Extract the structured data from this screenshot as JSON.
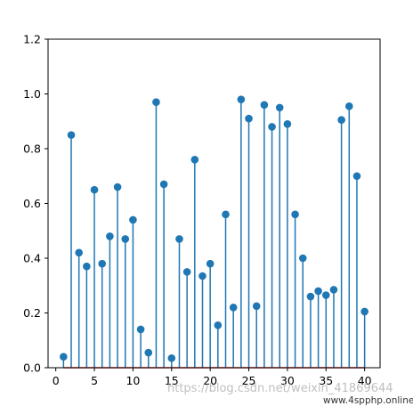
{
  "chart_data": {
    "type": "stem",
    "x": [
      1,
      2,
      3,
      4,
      5,
      6,
      7,
      8,
      9,
      10,
      11,
      12,
      13,
      14,
      15,
      16,
      17,
      18,
      19,
      20,
      21,
      22,
      23,
      24,
      25,
      26,
      27,
      28,
      29,
      30,
      31,
      32,
      33,
      34,
      35,
      36,
      37,
      38,
      39,
      40
    ],
    "values": [
      0.04,
      0.85,
      0.42,
      0.37,
      0.65,
      0.38,
      0.48,
      0.66,
      0.47,
      0.54,
      0.14,
      0.055,
      0.97,
      0.67,
      0.035,
      0.47,
      0.35,
      0.76,
      0.335,
      0.38,
      0.155,
      0.56,
      0.22,
      0.98,
      0.91,
      0.225,
      0.96,
      0.88,
      0.95,
      0.89,
      0.56,
      0.4,
      0.26,
      0.28,
      0.265,
      0.285,
      0.905,
      0.955,
      0.7,
      0.205
    ],
    "xlim": [
      -1,
      42
    ],
    "ylim": [
      0,
      1.2
    ],
    "xticks": [
      0,
      5,
      10,
      15,
      20,
      25,
      30,
      35,
      40
    ],
    "yticks": [
      0.0,
      0.2,
      0.4,
      0.6,
      0.8,
      1.0,
      1.2
    ],
    "xtick_labels": [
      "0",
      "5",
      "10",
      "15",
      "20",
      "25",
      "30",
      "35",
      "40"
    ],
    "ytick_labels": [
      "0.0",
      "0.2",
      "0.4",
      "0.6",
      "0.8",
      "1.0",
      "1.2"
    ],
    "title": "",
    "xlabel": "",
    "ylabel": "",
    "grid": false,
    "colors": {
      "stem": "#1f77b4",
      "baseline": "#d62728",
      "axes": "#000000"
    }
  },
  "watermark": {
    "text": "https://blog.csdn.net/weixin_41869644",
    "site": "www.4spphp.online"
  }
}
